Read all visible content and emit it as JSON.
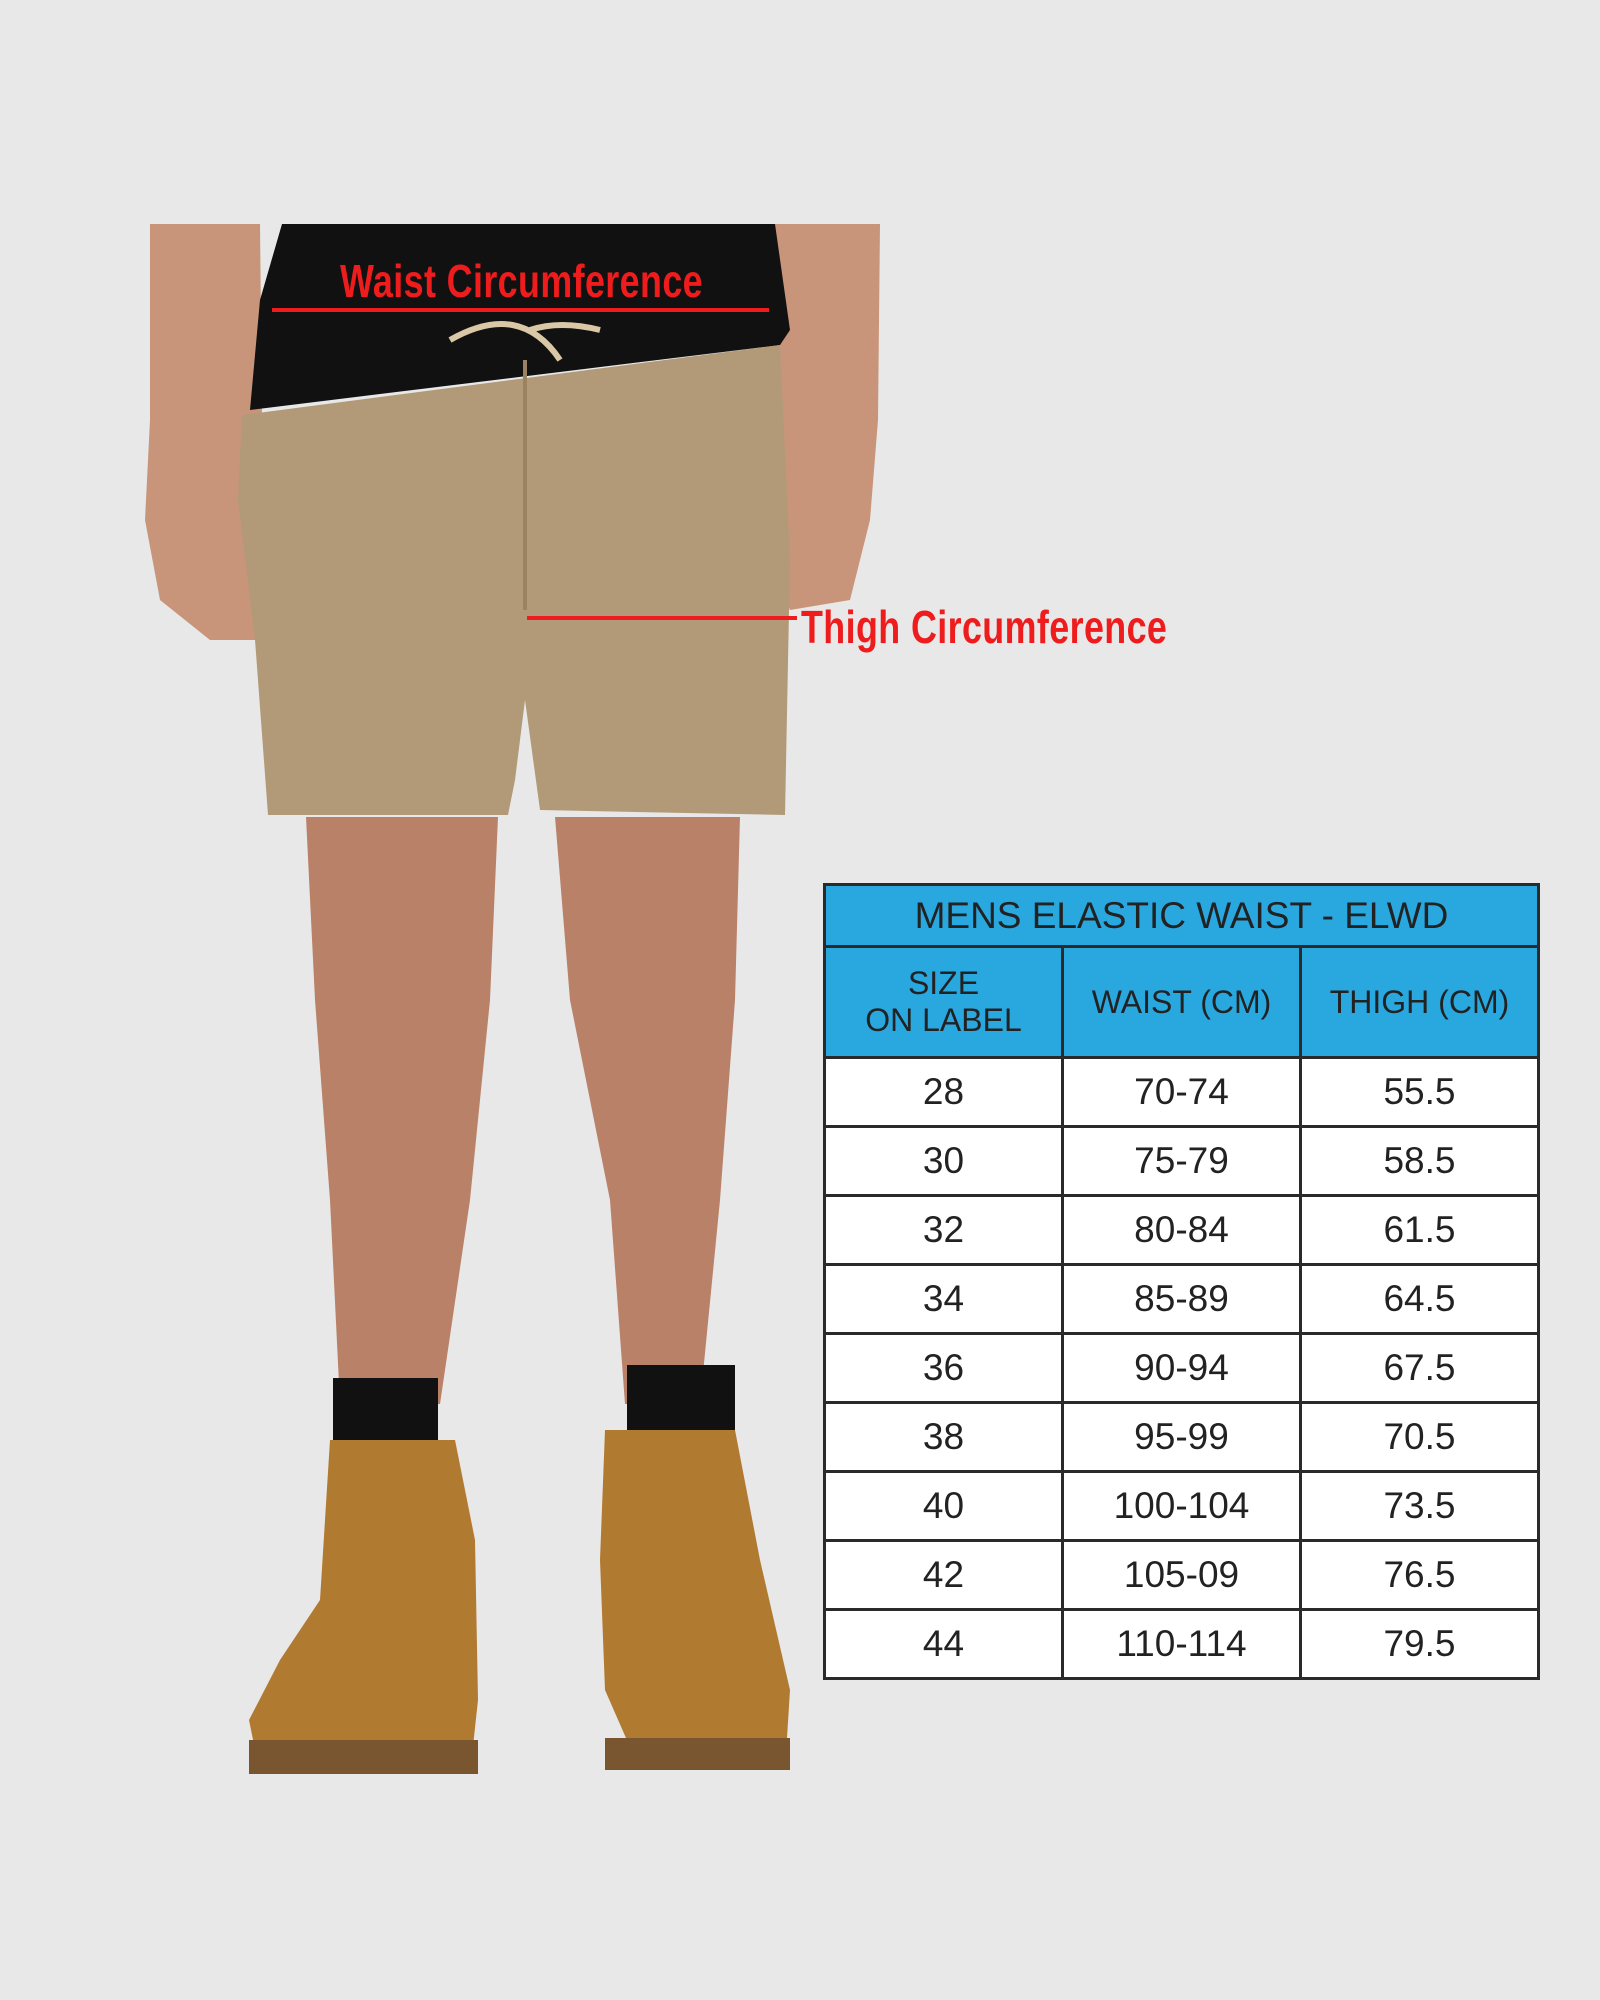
{
  "annotations": {
    "waist_label": "Waist Circumference",
    "thigh_label": "Thigh Circumference",
    "line_color": "#ee1c1c"
  },
  "size_table": {
    "title": "MENS ELASTIC WAIST - ELWD",
    "header_color": "#29a8e0",
    "columns": [
      "SIZE\nON LABEL",
      "WAIST (CM)",
      "THIGH (CM)"
    ],
    "column_lines": [
      [
        "SIZE",
        "ON LABEL"
      ],
      [
        "WAIST (CM)"
      ],
      [
        "THIGH (CM)"
      ]
    ],
    "rows": [
      [
        "28",
        "70-74",
        "55.5"
      ],
      [
        "30",
        "75-79",
        "58.5"
      ],
      [
        "32",
        "80-84",
        "61.5"
      ],
      [
        "34",
        "85-89",
        "64.5"
      ],
      [
        "36",
        "90-94",
        "67.5"
      ],
      [
        "38",
        "95-99",
        "70.5"
      ],
      [
        "40",
        "100-104",
        "73.5"
      ],
      [
        "42",
        "105-09",
        "76.5"
      ],
      [
        "44",
        "110-114",
        "79.5"
      ]
    ]
  }
}
